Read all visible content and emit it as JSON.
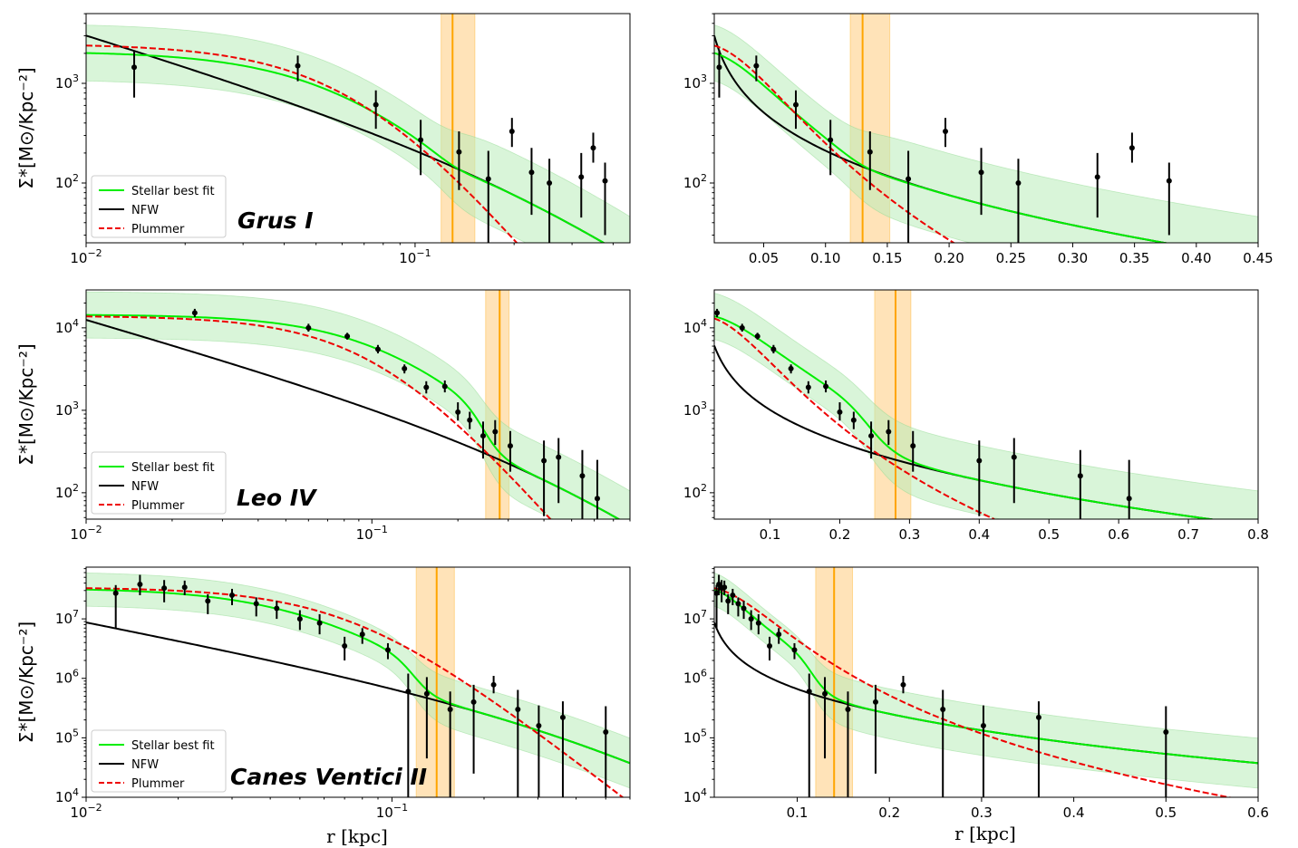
{
  "figure": {
    "xlabel_left": "r [kpc]",
    "xlabel_right": "r [kpc]"
  },
  "legend": {
    "stellar": "Stellar best fit",
    "nfw": "NFW",
    "plummer": "Plummer"
  },
  "colors": {
    "stellar": "#00ee00",
    "band": "#b9ecb9",
    "nfw": "#000000",
    "plummer": "#ee0000",
    "vline": "#ffa500",
    "vband": "#ffd9a0"
  },
  "chart_data": [
    {
      "id": "grus-log",
      "type": "line",
      "galaxy": "Grus I",
      "xscale": "log",
      "xlim": [
        0.01,
        0.45
      ],
      "ylim_log10": [
        1.4,
        3.7
      ],
      "ylabel": "Σ*[M⊙/Kpc⁻²]",
      "yticks_exp": [
        2,
        3
      ],
      "xticks": [
        {
          "v": 0.01,
          "b": "10",
          "e": "−2"
        },
        {
          "v": 0.1,
          "b": "10",
          "e": "−1"
        }
      ],
      "vline": 0.13,
      "vband": [
        0.12,
        0.152
      ],
      "trans": 0.13,
      "core": 0.06,
      "peak": 2100,
      "plummer": {
        "sigma0": 2500,
        "a": 0.068
      },
      "nfw": {
        "s0": 70,
        "rs": 0.45
      },
      "points": [
        {
          "x": 0.014,
          "y": 1450,
          "lo": 720,
          "hi": 2150
        },
        {
          "x": 0.044,
          "y": 1500,
          "lo": 1050,
          "hi": 1900
        },
        {
          "x": 0.076,
          "y": 610,
          "lo": 350,
          "hi": 850
        },
        {
          "x": 0.104,
          "y": 270,
          "lo": 120,
          "hi": 430
        },
        {
          "x": 0.136,
          "y": 205,
          "lo": 85,
          "hi": 330
        },
        {
          "x": 0.167,
          "y": 110,
          "lo": 25,
          "hi": 210
        },
        {
          "x": 0.197,
          "y": 330,
          "lo": 230,
          "hi": 450
        },
        {
          "x": 0.226,
          "y": 128,
          "lo": 48,
          "hi": 225
        },
        {
          "x": 0.256,
          "y": 100,
          "lo": 25,
          "hi": 175
        },
        {
          "x": 0.32,
          "y": 115,
          "lo": 45,
          "hi": 200
        },
        {
          "x": 0.348,
          "y": 225,
          "lo": 160,
          "hi": 320
        },
        {
          "x": 0.378,
          "y": 105,
          "lo": 30,
          "hi": 160
        }
      ]
    },
    {
      "id": "grus-lin",
      "type": "line",
      "galaxy": "Grus I",
      "xscale": "linear",
      "xlim": [
        0.01,
        0.45
      ],
      "ylim_log10": [
        1.4,
        3.7
      ],
      "yticks_exp": [
        2,
        3
      ],
      "xticks": [
        {
          "v": 0.05,
          "t": "0.05"
        },
        {
          "v": 0.1,
          "t": "0.10"
        },
        {
          "v": 0.15,
          "t": "0.15"
        },
        {
          "v": 0.2,
          "t": "0.20"
        },
        {
          "v": 0.25,
          "t": "0.25"
        },
        {
          "v": 0.3,
          "t": "0.30"
        },
        {
          "v": 0.35,
          "t": "0.35"
        },
        {
          "v": 0.4,
          "t": "0.40"
        },
        {
          "v": 0.45,
          "t": "0.45"
        }
      ],
      "vline": 0.13,
      "vband": [
        0.12,
        0.152
      ],
      "trans": 0.13,
      "core": 0.06,
      "peak": 2100,
      "plummer": {
        "sigma0": 2500,
        "a": 0.068
      },
      "nfw": {
        "s0": 70,
        "rs": 0.45
      },
      "points": [
        {
          "x": 0.014,
          "y": 1450,
          "lo": 720,
          "hi": 2150
        },
        {
          "x": 0.044,
          "y": 1500,
          "lo": 1050,
          "hi": 1900
        },
        {
          "x": 0.076,
          "y": 610,
          "lo": 350,
          "hi": 850
        },
        {
          "x": 0.104,
          "y": 270,
          "lo": 120,
          "hi": 430
        },
        {
          "x": 0.136,
          "y": 205,
          "lo": 85,
          "hi": 330
        },
        {
          "x": 0.167,
          "y": 110,
          "lo": 25,
          "hi": 210
        },
        {
          "x": 0.197,
          "y": 330,
          "lo": 230,
          "hi": 450
        },
        {
          "x": 0.226,
          "y": 128,
          "lo": 48,
          "hi": 225
        },
        {
          "x": 0.256,
          "y": 100,
          "lo": 25,
          "hi": 175
        },
        {
          "x": 0.32,
          "y": 115,
          "lo": 45,
          "hi": 200
        },
        {
          "x": 0.348,
          "y": 225,
          "lo": 160,
          "hi": 320
        },
        {
          "x": 0.378,
          "y": 105,
          "lo": 30,
          "hi": 160
        }
      ]
    },
    {
      "id": "leo-log",
      "type": "line",
      "galaxy": "Leo IV",
      "xscale": "log",
      "xlim": [
        0.01,
        0.8
      ],
      "ylim_log10": [
        1.68,
        4.46
      ],
      "ylabel": "Σ*[M⊙/Kpc⁻²]",
      "yticks_exp": [
        2,
        3,
        4
      ],
      "xticks": [
        {
          "v": 0.01,
          "b": "10",
          "e": "−2"
        },
        {
          "v": 0.1,
          "b": "10",
          "e": "−1"
        }
      ],
      "vline": 0.28,
      "vband": [
        0.25,
        0.302
      ],
      "trans": 0.25,
      "core": 0.11,
      "peak": 14500,
      "plummer": {
        "sigma0": 14000,
        "a": 0.105
      },
      "nfw": {
        "s0": 160,
        "rs": 0.8
      },
      "points": [
        {
          "x": 0.024,
          "y": 15200,
          "lo": 13500,
          "hi": 17000
        },
        {
          "x": 0.06,
          "y": 10000,
          "lo": 9000,
          "hi": 11200
        },
        {
          "x": 0.082,
          "y": 7900,
          "lo": 7200,
          "hi": 8700
        },
        {
          "x": 0.105,
          "y": 5500,
          "lo": 4900,
          "hi": 6200
        },
        {
          "x": 0.13,
          "y": 3200,
          "lo": 2800,
          "hi": 3600
        },
        {
          "x": 0.155,
          "y": 1900,
          "lo": 1600,
          "hi": 2250
        },
        {
          "x": 0.18,
          "y": 1950,
          "lo": 1650,
          "hi": 2300
        },
        {
          "x": 0.2,
          "y": 950,
          "lo": 750,
          "hi": 1250
        },
        {
          "x": 0.22,
          "y": 760,
          "lo": 590,
          "hi": 960
        },
        {
          "x": 0.245,
          "y": 490,
          "lo": 260,
          "hi": 730
        },
        {
          "x": 0.27,
          "y": 550,
          "lo": 380,
          "hi": 760
        },
        {
          "x": 0.305,
          "y": 370,
          "lo": 180,
          "hi": 560
        },
        {
          "x": 0.4,
          "y": 245,
          "lo": 52,
          "hi": 430
        },
        {
          "x": 0.45,
          "y": 270,
          "lo": 75,
          "hi": 460
        },
        {
          "x": 0.545,
          "y": 160,
          "lo": 35,
          "hi": 330
        },
        {
          "x": 0.615,
          "y": 85,
          "lo": 30,
          "hi": 250
        }
      ]
    },
    {
      "id": "leo-lin",
      "type": "line",
      "galaxy": "Leo IV",
      "xscale": "linear",
      "xlim": [
        0.02,
        0.8
      ],
      "ylim_log10": [
        1.68,
        4.46
      ],
      "yticks_exp": [
        2,
        3,
        4
      ],
      "xticks": [
        {
          "v": 0.1,
          "t": "0.1"
        },
        {
          "v": 0.2,
          "t": "0.2"
        },
        {
          "v": 0.3,
          "t": "0.3"
        },
        {
          "v": 0.4,
          "t": "0.4"
        },
        {
          "v": 0.5,
          "t": "0.5"
        },
        {
          "v": 0.6,
          "t": "0.6"
        },
        {
          "v": 0.7,
          "t": "0.7"
        },
        {
          "v": 0.8,
          "t": "0.8"
        }
      ],
      "vline": 0.28,
      "vband": [
        0.25,
        0.302
      ],
      "trans": 0.25,
      "core": 0.11,
      "peak": 14500,
      "plummer": {
        "sigma0": 14000,
        "a": 0.105
      },
      "nfw": {
        "s0": 160,
        "rs": 0.8
      },
      "points": [
        {
          "x": 0.024,
          "y": 15200,
          "lo": 13500,
          "hi": 17000
        },
        {
          "x": 0.06,
          "y": 10000,
          "lo": 9000,
          "hi": 11200
        },
        {
          "x": 0.082,
          "y": 7900,
          "lo": 7200,
          "hi": 8700
        },
        {
          "x": 0.105,
          "y": 5500,
          "lo": 4900,
          "hi": 6200
        },
        {
          "x": 0.13,
          "y": 3200,
          "lo": 2800,
          "hi": 3600
        },
        {
          "x": 0.155,
          "y": 1900,
          "lo": 1600,
          "hi": 2250
        },
        {
          "x": 0.18,
          "y": 1950,
          "lo": 1650,
          "hi": 2300
        },
        {
          "x": 0.2,
          "y": 950,
          "lo": 750,
          "hi": 1250
        },
        {
          "x": 0.22,
          "y": 760,
          "lo": 590,
          "hi": 960
        },
        {
          "x": 0.245,
          "y": 490,
          "lo": 260,
          "hi": 730
        },
        {
          "x": 0.27,
          "y": 550,
          "lo": 380,
          "hi": 760
        },
        {
          "x": 0.305,
          "y": 370,
          "lo": 180,
          "hi": 560
        },
        {
          "x": 0.4,
          "y": 245,
          "lo": 52,
          "hi": 430
        },
        {
          "x": 0.45,
          "y": 270,
          "lo": 75,
          "hi": 460
        },
        {
          "x": 0.545,
          "y": 160,
          "lo": 35,
          "hi": 330
        },
        {
          "x": 0.615,
          "y": 85,
          "lo": 30,
          "hi": 250
        }
      ]
    },
    {
      "id": "cvn-log",
      "type": "line",
      "galaxy": "Canes Ventici II",
      "xscale": "log",
      "xlim": [
        0.01,
        0.6
      ],
      "ylim_log10": [
        4.0,
        7.87
      ],
      "ylabel": "Σ*[M⊙/Kpc⁻²]",
      "yticks_exp": [
        4,
        5,
        6,
        7
      ],
      "xticks": [
        {
          "v": 0.01,
          "b": "10",
          "e": "−2"
        },
        {
          "v": 0.1,
          "b": "10",
          "e": "−1"
        }
      ],
      "vline": 0.14,
      "vband": [
        0.12,
        0.16
      ],
      "trans": 0.12,
      "core": 0.05,
      "peak": 33000000,
      "plummer": {
        "sigma0": 34000000,
        "a": 0.075
      },
      "nfw": {
        "s0": 150000,
        "rs": 0.6
      },
      "points": [
        {
          "x": 0.0125,
          "y": 27000000,
          "lo": 7000000,
          "hi": 37000000
        },
        {
          "x": 0.015,
          "y": 38000000,
          "lo": 25000000,
          "hi": 55000000
        },
        {
          "x": 0.018,
          "y": 33000000,
          "lo": 19000000,
          "hi": 45000000
        },
        {
          "x": 0.021,
          "y": 34000000,
          "lo": 25000000,
          "hi": 44000000
        },
        {
          "x": 0.025,
          "y": 20000000,
          "lo": 12000000,
          "hi": 26000000
        },
        {
          "x": 0.03,
          "y": 25000000,
          "lo": 17000000,
          "hi": 32000000
        },
        {
          "x": 0.036,
          "y": 18000000,
          "lo": 11000000,
          "hi": 23000000
        },
        {
          "x": 0.042,
          "y": 15000000,
          "lo": 10000000,
          "hi": 20000000
        },
        {
          "x": 0.05,
          "y": 10000000,
          "lo": 6500000,
          "hi": 14000000
        },
        {
          "x": 0.058,
          "y": 8500000,
          "lo": 5500000,
          "hi": 12000000
        },
        {
          "x": 0.07,
          "y": 3500000,
          "lo": 2000000,
          "hi": 5000000
        },
        {
          "x": 0.08,
          "y": 5500000,
          "lo": 3800000,
          "hi": 7000000
        },
        {
          "x": 0.097,
          "y": 3000000,
          "lo": 2100000,
          "hi": 3900000
        },
        {
          "x": 0.113,
          "y": 600000,
          "lo": 10000,
          "hi": 1200000
        },
        {
          "x": 0.13,
          "y": 550000,
          "lo": 45000,
          "hi": 1050000
        },
        {
          "x": 0.155,
          "y": 300000,
          "lo": 10000,
          "hi": 600000
        },
        {
          "x": 0.185,
          "y": 400000,
          "lo": 25000,
          "hi": 780000
        },
        {
          "x": 0.215,
          "y": 780000,
          "lo": 560000,
          "hi": 1100000
        },
        {
          "x": 0.258,
          "y": 300000,
          "lo": 10000,
          "hi": 640000
        },
        {
          "x": 0.302,
          "y": 160000,
          "lo": 10000,
          "hi": 350000
        },
        {
          "x": 0.362,
          "y": 220000,
          "lo": 10000,
          "hi": 410000
        },
        {
          "x": 0.5,
          "y": 125000,
          "lo": 10000,
          "hi": 340000
        }
      ]
    },
    {
      "id": "cvn-lin",
      "type": "line",
      "galaxy": "Canes Ventici II",
      "xscale": "linear",
      "xlim": [
        0.01,
        0.6
      ],
      "ylim_log10": [
        4.0,
        7.87
      ],
      "yticks_exp": [
        4,
        5,
        6,
        7
      ],
      "xticks": [
        {
          "v": 0.1,
          "t": "0.1"
        },
        {
          "v": 0.2,
          "t": "0.2"
        },
        {
          "v": 0.3,
          "t": "0.3"
        },
        {
          "v": 0.4,
          "t": "0.4"
        },
        {
          "v": 0.5,
          "t": "0.5"
        },
        {
          "v": 0.6,
          "t": "0.6"
        }
      ],
      "vline": 0.14,
      "vband": [
        0.12,
        0.16
      ],
      "trans": 0.12,
      "core": 0.05,
      "peak": 33000000,
      "plummer": {
        "sigma0": 34000000,
        "a": 0.075
      },
      "nfw": {
        "s0": 150000,
        "rs": 0.6
      },
      "points": [
        {
          "x": 0.0125,
          "y": 27000000,
          "lo": 7000000,
          "hi": 37000000
        },
        {
          "x": 0.015,
          "y": 38000000,
          "lo": 25000000,
          "hi": 55000000
        },
        {
          "x": 0.018,
          "y": 33000000,
          "lo": 19000000,
          "hi": 45000000
        },
        {
          "x": 0.021,
          "y": 34000000,
          "lo": 25000000,
          "hi": 44000000
        },
        {
          "x": 0.025,
          "y": 20000000,
          "lo": 12000000,
          "hi": 26000000
        },
        {
          "x": 0.03,
          "y": 25000000,
          "lo": 17000000,
          "hi": 32000000
        },
        {
          "x": 0.036,
          "y": 18000000,
          "lo": 11000000,
          "hi": 23000000
        },
        {
          "x": 0.042,
          "y": 15000000,
          "lo": 10000000,
          "hi": 20000000
        },
        {
          "x": 0.05,
          "y": 10000000,
          "lo": 6500000,
          "hi": 14000000
        },
        {
          "x": 0.058,
          "y": 8500000,
          "lo": 5500000,
          "hi": 12000000
        },
        {
          "x": 0.07,
          "y": 3500000,
          "lo": 2000000,
          "hi": 5000000
        },
        {
          "x": 0.08,
          "y": 5500000,
          "lo": 3800000,
          "hi": 7000000
        },
        {
          "x": 0.097,
          "y": 3000000,
          "lo": 2100000,
          "hi": 3900000
        },
        {
          "x": 0.113,
          "y": 600000,
          "lo": 10000,
          "hi": 1200000
        },
        {
          "x": 0.13,
          "y": 550000,
          "lo": 45000,
          "hi": 1050000
        },
        {
          "x": 0.155,
          "y": 300000,
          "lo": 10000,
          "hi": 600000
        },
        {
          "x": 0.185,
          "y": 400000,
          "lo": 25000,
          "hi": 780000
        },
        {
          "x": 0.215,
          "y": 780000,
          "lo": 560000,
          "hi": 1100000
        },
        {
          "x": 0.258,
          "y": 300000,
          "lo": 10000,
          "hi": 640000
        },
        {
          "x": 0.302,
          "y": 160000,
          "lo": 10000,
          "hi": 350000
        },
        {
          "x": 0.362,
          "y": 220000,
          "lo": 10000,
          "hi": 410000
        },
        {
          "x": 0.5,
          "y": 125000,
          "lo": 10000,
          "hi": 340000
        }
      ]
    }
  ]
}
